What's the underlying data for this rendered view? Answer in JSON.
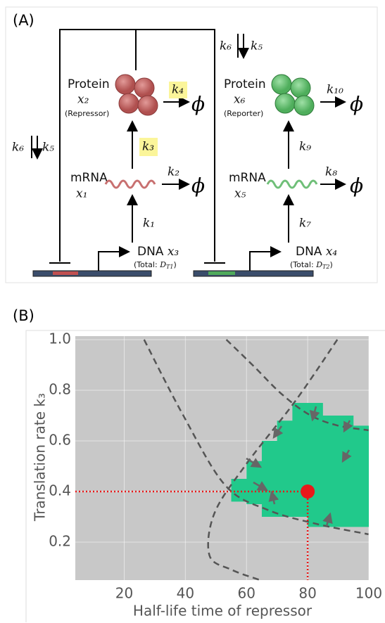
{
  "panel_a": {
    "label": "(A)",
    "left": {
      "protein": "Protein",
      "protein_var": "x₂",
      "protein_role": "(Repressor)",
      "mrna": "mRNA",
      "mrna_var": "x₁",
      "dna": "DNA",
      "dna_var": "x₃",
      "total": [
        "(Total: ",
        "D",
        "T1",
        ")"
      ]
    },
    "right": {
      "protein": "Protein",
      "protein_var": "x₆",
      "protein_role": "(Reporter)",
      "mrna": "mRNA",
      "mrna_var": "x₅",
      "dna": "DNA",
      "dna_var": "x₄",
      "total": [
        "(Total: ",
        "D",
        "T2",
        ")"
      ]
    },
    "rates": {
      "k1": "k₁",
      "k2": "k₂",
      "k3": "k₃",
      "k4": "k₄",
      "k5": "k₅",
      "k6": "k₆",
      "k7": "k₇",
      "k8": "k₈",
      "k9": "k₉",
      "k10": "k₁₀"
    },
    "degraded": "ϕ"
  },
  "chart_data": {
    "type": "region",
    "panel_label": "(B)",
    "xlabel": "Half-life time of repressor",
    "ylabel": "Translation rate k₃",
    "xlim": [
      4,
      100
    ],
    "ylim": [
      0.05,
      1.0
    ],
    "xticks": [
      20,
      40,
      60,
      80,
      100
    ],
    "yticks": [
      0.2,
      0.4,
      0.6,
      0.8,
      {
        "value": 1,
        "label": "1.0"
      }
    ],
    "grid": true,
    "background": "#c8c8c8",
    "region": {
      "color": "#21c98b",
      "x": [
        55,
        55,
        60,
        60,
        65,
        65,
        70,
        70,
        75,
        75,
        85,
        85,
        95,
        95,
        100,
        100,
        80,
        80,
        65,
        65,
        60,
        60
      ],
      "y": [
        0.36,
        0.45,
        0.45,
        0.52,
        0.52,
        0.6,
        0.6,
        0.68,
        0.68,
        0.75,
        0.75,
        0.7,
        0.7,
        0.66,
        0.66,
        0.26,
        0.26,
        0.3,
        0.3,
        0.35,
        0.35,
        0.36
      ]
    },
    "curve_color": "#555555",
    "curves": [
      {
        "x": [
          26.5,
          39.2,
          53.0,
          66.8,
          82.9,
          99.9
        ],
        "y": [
          1.0,
          0.703,
          0.425,
          0.328,
          0.272,
          0.231
        ]
      },
      {
        "x": [
          89.7,
          76.0,
          59.9,
          49.5,
          47.9,
          55.3,
          64.5
        ],
        "y": [
          1.0,
          0.758,
          0.508,
          0.314,
          0.147,
          0.09,
          0.05
        ]
      },
      {
        "x": [
          53.4,
          62.2,
          71.4,
          80.6,
          89.7,
          99.9
        ],
        "y": [
          1.0,
          0.897,
          0.786,
          0.703,
          0.661,
          0.642
        ]
      }
    ],
    "point": {
      "x": 80,
      "y": 0.4,
      "color": "#e8191a"
    }
  }
}
